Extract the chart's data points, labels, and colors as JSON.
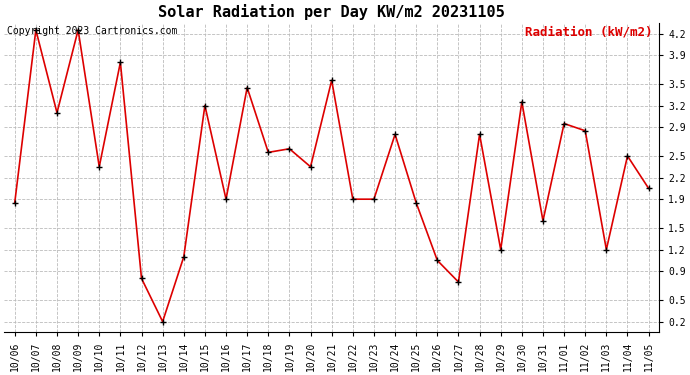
{
  "title": "Solar Radiation per Day KW/m2 20231105",
  "copyright_text": "Copyright 2023 Cartronics.com",
  "legend_label": "Radiation (kW/m2)",
  "dates": [
    "10/06",
    "10/07",
    "10/08",
    "10/09",
    "10/10",
    "10/11",
    "10/12",
    "10/13",
    "10/14",
    "10/15",
    "10/16",
    "10/17",
    "10/18",
    "10/19",
    "10/20",
    "10/21",
    "10/22",
    "10/23",
    "10/24",
    "10/25",
    "10/26",
    "10/27",
    "10/28",
    "10/29",
    "10/30",
    "10/31",
    "11/01",
    "11/02",
    "11/03",
    "11/04",
    "11/05"
  ],
  "values": [
    1.85,
    4.25,
    3.1,
    4.25,
    2.35,
    3.8,
    0.8,
    0.2,
    1.1,
    3.2,
    1.9,
    3.45,
    2.55,
    2.6,
    2.35,
    3.55,
    1.9,
    1.9,
    2.8,
    1.85,
    1.05,
    0.75,
    2.8,
    1.2,
    3.25,
    1.6,
    2.95,
    2.85,
    1.2,
    2.5,
    2.05
  ],
  "line_color": "#dd0000",
  "marker": "+",
  "marker_color": "#000000",
  "marker_size": 5,
  "marker_linewidth": 1.0,
  "line_width": 1.2,
  "ylim": [
    0.05,
    4.35
  ],
  "yticks": [
    0.2,
    0.5,
    0.9,
    1.2,
    1.5,
    1.9,
    2.2,
    2.5,
    2.9,
    3.2,
    3.5,
    3.9,
    4.2
  ],
  "grid_color": "#bbbbbb",
  "grid_linestyle": "--",
  "background_color": "#ffffff",
  "title_fontsize": 11,
  "legend_fontsize": 9,
  "copyright_fontsize": 7,
  "tick_fontsize": 7,
  "fig_width": 6.9,
  "fig_height": 3.75
}
